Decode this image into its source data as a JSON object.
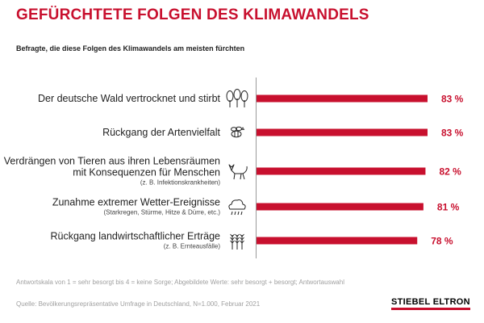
{
  "chart_data": {
    "type": "bar",
    "orientation": "horizontal",
    "title": "GEFÜRCHTETE FOLGEN DES KLIMAWANDELS",
    "subtitle": "Befragte, die diese Folgen des Klimawandels am meisten fürchten",
    "unit": "%",
    "xlim": [
      0,
      100
    ],
    "grid": false,
    "legend": "none",
    "bar_color": "#c8102e",
    "label_color": "#c8102e",
    "categories": [
      {
        "label_lines": [
          "Der deutsche Wald vertrocknet und stirbt"
        ],
        "note": "",
        "value": 83,
        "value_label": "83 %",
        "icon": "trees-icon"
      },
      {
        "label_lines": [
          "Rückgang der Artenvielfalt"
        ],
        "note": "",
        "value": 83,
        "value_label": "83 %",
        "icon": "bee-icon"
      },
      {
        "label_lines": [
          "Verdrängen von Tieren aus ihren Lebensräumen",
          "mit Konsequenzen für Menschen"
        ],
        "note": "(z. B. Infektionskrankheiten)",
        "value": 82,
        "value_label": "82 %",
        "icon": "fox-icon"
      },
      {
        "label_lines": [
          "Zunahme extremer Wetter-Ereignisse"
        ],
        "note": "(Starkregen, Stürme, Hitze & Dürre, etc.)",
        "value": 81,
        "value_label": "81 %",
        "icon": "rain-cloud-icon"
      },
      {
        "label_lines": [
          "Rückgang landwirtschaftlicher Erträge"
        ],
        "note": "(z. B. Ernteausfälle)",
        "value": 78,
        "value_label": "78 %",
        "icon": "wheat-icon"
      }
    ]
  },
  "footnote": "Antwortskala von 1 = sehr besorgt bis 4 = keine Sorge; Abgebildete Werte: sehr besorgt + besorgt; Antwortauswahl",
  "source": "Quelle: Bevölkerungsrepräsentative Umfrage in Deutschland, N=1.000, Februar 2021",
  "logo_text": "STIEBEL ELTRON"
}
